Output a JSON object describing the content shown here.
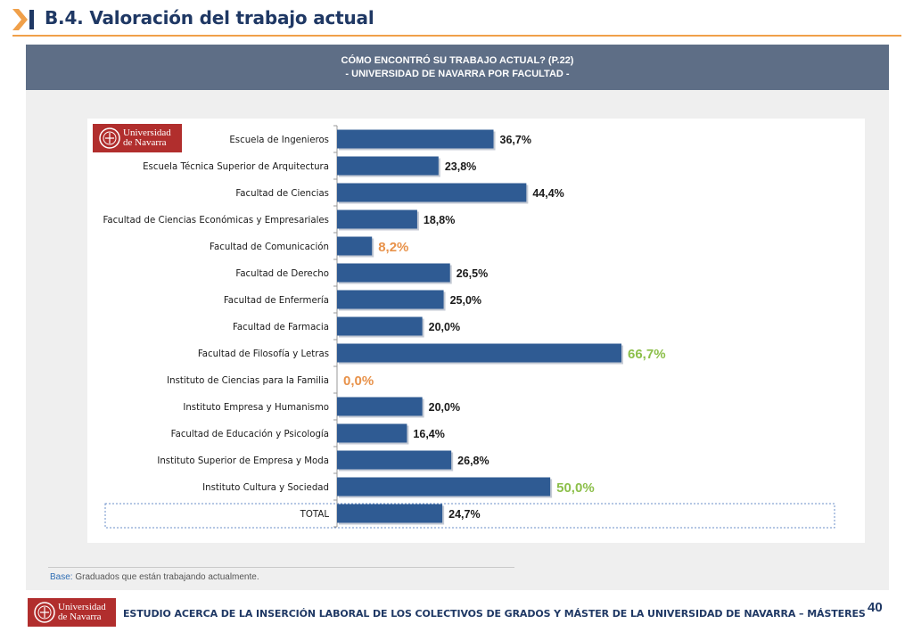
{
  "header": {
    "title": "B.4. Valoración del trabajo actual"
  },
  "panel": {
    "title_line1": "CÓMO ENCONTRÓ SU TRABAJO ACTUAL? (P.22)",
    "title_line2": "- UNIVERSIDAD DE NAVARRA POR FACULTAD -"
  },
  "logo": {
    "line1": "Universidad",
    "line2": "de Navarra"
  },
  "chart_data": {
    "type": "bar",
    "orientation": "horizontal",
    "categories": [
      "Escuela de Ingenieros",
      "Escuela Técnica Superior de Arquitectura",
      "Facultad de Ciencias",
      "Facultad de Ciencias Económicas y Empresariales",
      "Facultad de Comunicación",
      "Facultad de Derecho",
      "Facultad de Enfermería",
      "Facultad de Farmacia",
      "Facultad de Filosofía y Letras",
      "Instituto de Ciencias para la Familia",
      "Instituto Empresa y Humanismo",
      "Facultad de Educación y Psicología",
      "Instituto Superior de Empresa y Moda",
      "Instituto Cultura y Sociedad",
      "TOTAL"
    ],
    "values": [
      36.7,
      23.8,
      44.4,
      18.8,
      8.2,
      26.5,
      25.0,
      20.0,
      66.7,
      0.0,
      20.0,
      16.4,
      26.8,
      50.0,
      24.7
    ],
    "labels": [
      "36,7%",
      "23,8%",
      "44,4%",
      "18,8%",
      "8,2%",
      "26,5%",
      "25,0%",
      "20,0%",
      "66,7%",
      "0,0%",
      "20,0%",
      "16,4%",
      "26,8%",
      "50,0%",
      "24,7%"
    ],
    "label_colors": [
      "#1a1a1a",
      "#1a1a1a",
      "#1a1a1a",
      "#1a1a1a",
      "#e8924a",
      "#1a1a1a",
      "#1a1a1a",
      "#1a1a1a",
      "#8cbf4a",
      "#e8924a",
      "#1a1a1a",
      "#1a1a1a",
      "#1a1a1a",
      "#8cbf4a",
      "#1a1a1a"
    ],
    "bar_color": "#2f5b93",
    "xlim": [
      0,
      70
    ],
    "highlight_row": "TOTAL"
  },
  "base_note": {
    "label": "Base:",
    "text": "Graduados que están trabajando actualmente."
  },
  "footer": {
    "text": "ESTUDIO ACERCA DE LA INSERCIÓN LABORAL DE LOS COLECTIVOS DE GRADOS Y MÁSTER DE LA UNIVERSIDAD DE NAVARRA – MÁSTERES",
    "page": "40"
  }
}
